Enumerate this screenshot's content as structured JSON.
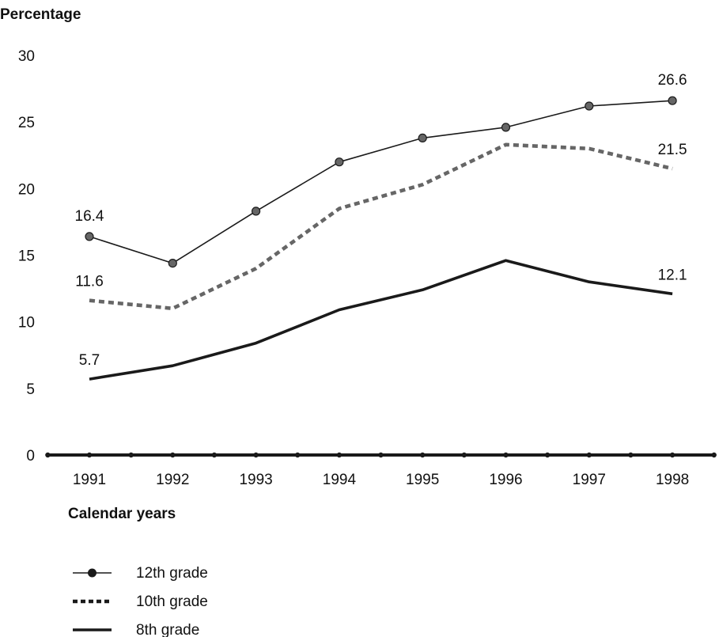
{
  "chart_data": {
    "type": "line",
    "title": "",
    "ylabel": "Percentage",
    "xlabel": "Calendar years",
    "ylim": [
      0,
      30
    ],
    "yticks": [
      "0",
      "5",
      "10",
      "15",
      "20",
      "25",
      "30"
    ],
    "x": [
      "1991",
      "1992",
      "1993",
      "1994",
      "1995",
      "1996",
      "1997",
      "1998"
    ],
    "grid": false,
    "legend_position": "bottom-left",
    "series": [
      {
        "name": "12th grade",
        "style": "thin-line-with-circle-markers",
        "color": "#1a1a1a",
        "marker_color": "#666666",
        "values": [
          16.4,
          14.4,
          18.3,
          22.0,
          23.8,
          24.6,
          26.2,
          26.6
        ],
        "labels": [
          "16.4",
          "",
          "",
          "",
          "",
          "",
          "",
          "26.6"
        ]
      },
      {
        "name": "10th grade",
        "style": "dotted-thick-line",
        "color": "#666666",
        "values": [
          11.6,
          11.0,
          14.0,
          18.5,
          20.3,
          23.3,
          23.0,
          21.5
        ],
        "labels": [
          "11.6",
          "",
          "",
          "",
          "",
          "",
          "",
          "21.5"
        ]
      },
      {
        "name": "8th grade",
        "style": "thick-solid-line",
        "color": "#1a1a1a",
        "values": [
          5.7,
          6.7,
          8.4,
          10.9,
          12.4,
          14.6,
          13.0,
          12.1
        ],
        "labels": [
          "5.7",
          "",
          "",
          "",
          "",
          "",
          "",
          "12.1"
        ]
      }
    ]
  }
}
